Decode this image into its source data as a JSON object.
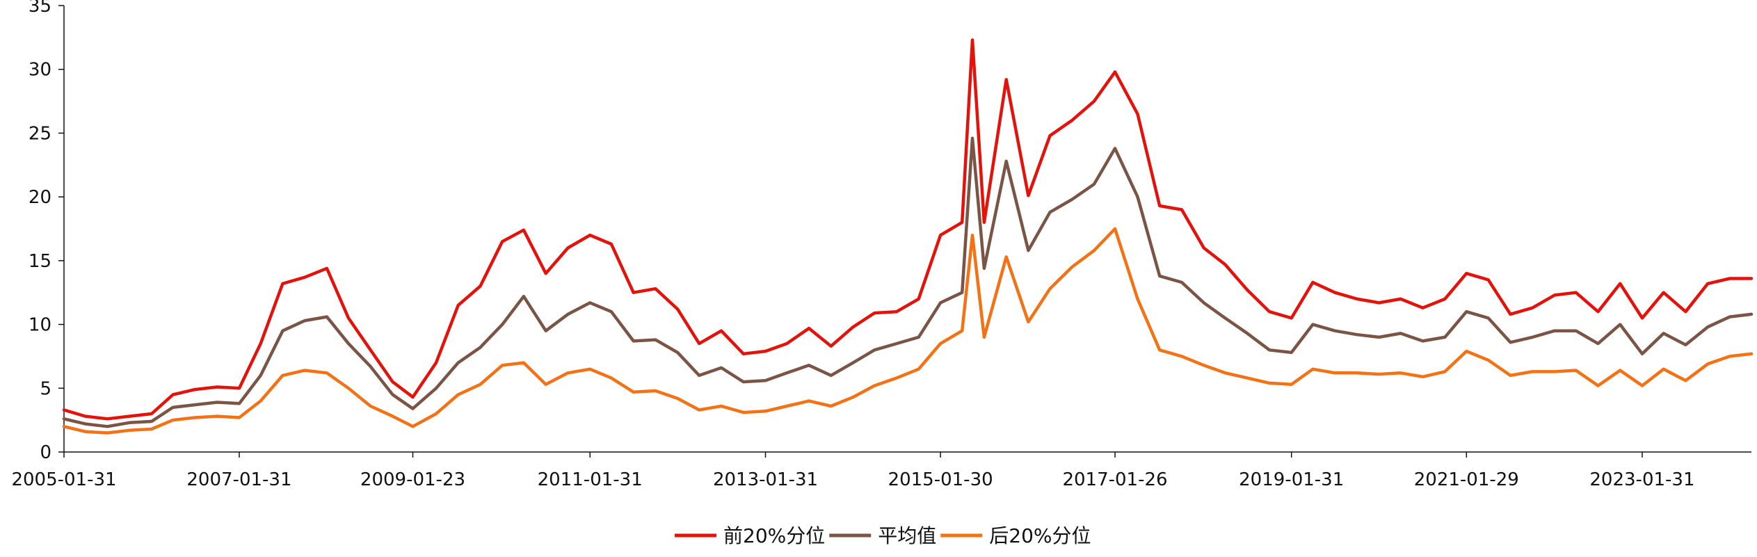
{
  "chart_data": {
    "type": "line",
    "title": "",
    "xlabel": "",
    "ylabel": "",
    "ylim": [
      0,
      35
    ],
    "y_ticks": [
      0,
      5,
      10,
      15,
      20,
      25,
      30,
      35
    ],
    "x_tick_labels": [
      "2005-01-31",
      "2007-01-31",
      "2009-01-23",
      "2011-01-31",
      "2013-01-31",
      "2015-01-30",
      "2017-01-26",
      "2019-01-31",
      "2021-01-29",
      "2023-01-31"
    ],
    "grid": false,
    "legend_position": "bottom-center",
    "x": [
      "2005-01-31",
      "2005-04-30",
      "2005-07-31",
      "2005-10-31",
      "2006-01-31",
      "2006-04-30",
      "2006-07-31",
      "2006-10-31",
      "2007-01-31",
      "2007-04-30",
      "2007-07-31",
      "2007-10-31",
      "2008-01-31",
      "2008-04-30",
      "2008-07-31",
      "2008-10-31",
      "2009-01-23",
      "2009-04-30",
      "2009-07-31",
      "2009-10-31",
      "2010-01-31",
      "2010-04-30",
      "2010-07-31",
      "2010-10-31",
      "2011-01-31",
      "2011-04-30",
      "2011-07-31",
      "2011-10-31",
      "2012-01-31",
      "2012-04-30",
      "2012-07-31",
      "2012-10-31",
      "2013-01-31",
      "2013-04-30",
      "2013-07-31",
      "2013-10-31",
      "2014-01-31",
      "2014-04-30",
      "2014-07-31",
      "2014-10-31",
      "2015-01-30",
      "2015-04-30",
      "2015-06-12",
      "2015-07-31",
      "2015-10-31",
      "2016-01-31",
      "2016-04-30",
      "2016-07-31",
      "2016-10-31",
      "2017-01-26",
      "2017-04-30",
      "2017-07-31",
      "2017-10-31",
      "2018-01-31",
      "2018-04-30",
      "2018-07-31",
      "2018-10-31",
      "2019-01-31",
      "2019-04-30",
      "2019-07-31",
      "2019-10-31",
      "2020-01-31",
      "2020-04-30",
      "2020-07-31",
      "2020-10-31",
      "2021-01-29",
      "2021-04-30",
      "2021-07-31",
      "2021-10-31",
      "2022-01-31",
      "2022-04-30",
      "2022-07-31",
      "2022-10-31",
      "2023-01-31",
      "2023-04-30",
      "2023-07-31",
      "2023-10-31",
      "2024-01-31",
      "2024-04-30"
    ],
    "series": [
      {
        "name": "前20%分位",
        "color": "#E3120B",
        "values": [
          3.3,
          2.8,
          2.6,
          2.8,
          3.0,
          4.5,
          4.9,
          5.1,
          5.0,
          8.5,
          13.2,
          13.7,
          14.4,
          10.5,
          8.0,
          5.5,
          4.3,
          7.0,
          11.5,
          13.0,
          16.5,
          17.4,
          14.0,
          16.0,
          17.0,
          16.3,
          12.5,
          12.8,
          11.2,
          8.5,
          9.5,
          7.7,
          7.9,
          8.5,
          9.7,
          8.3,
          9.8,
          10.9,
          11.0,
          12.0,
          17.0,
          18.0,
          32.3,
          18.0,
          29.2,
          20.1,
          24.8,
          26.0,
          27.5,
          29.8,
          26.5,
          19.3,
          19.0,
          16.0,
          14.7,
          12.7,
          11.0,
          10.5,
          13.3,
          12.5,
          12.0,
          11.7,
          12.0,
          11.3,
          12.0,
          14.0,
          13.5,
          10.8,
          11.3,
          12.3,
          12.5,
          11.0,
          13.2,
          10.5,
          12.5,
          11.0,
          13.2,
          13.6,
          13.6
        ]
      },
      {
        "name": "平均值",
        "color": "#7A5546",
        "values": [
          2.6,
          2.2,
          2.0,
          2.3,
          2.4,
          3.5,
          3.7,
          3.9,
          3.8,
          6.0,
          9.5,
          10.3,
          10.6,
          8.5,
          6.7,
          4.5,
          3.4,
          5.0,
          7.0,
          8.2,
          10.0,
          12.2,
          9.5,
          10.8,
          11.7,
          11.0,
          8.7,
          8.8,
          7.8,
          6.0,
          6.6,
          5.5,
          5.6,
          6.2,
          6.8,
          6.0,
          7.0,
          8.0,
          8.5,
          9.0,
          11.7,
          12.5,
          24.6,
          14.4,
          22.8,
          15.8,
          18.8,
          19.8,
          21.0,
          23.8,
          20.0,
          13.8,
          13.3,
          11.7,
          10.5,
          9.3,
          8.0,
          7.8,
          10.0,
          9.5,
          9.2,
          9.0,
          9.3,
          8.7,
          9.0,
          11.0,
          10.5,
          8.6,
          9.0,
          9.5,
          9.5,
          8.5,
          10.0,
          7.7,
          9.3,
          8.4,
          9.8,
          10.6,
          10.8
        ]
      },
      {
        "name": "后20%分位",
        "color": "#F47216",
        "values": [
          2.0,
          1.6,
          1.5,
          1.7,
          1.8,
          2.5,
          2.7,
          2.8,
          2.7,
          4.0,
          6.0,
          6.4,
          6.2,
          5.0,
          3.6,
          2.8,
          2.0,
          3.0,
          4.5,
          5.3,
          6.8,
          7.0,
          5.3,
          6.2,
          6.5,
          5.8,
          4.7,
          4.8,
          4.2,
          3.3,
          3.6,
          3.1,
          3.2,
          3.6,
          4.0,
          3.6,
          4.3,
          5.2,
          5.8,
          6.5,
          8.5,
          9.5,
          17.0,
          9.0,
          15.3,
          10.2,
          12.8,
          14.5,
          15.8,
          17.5,
          12.0,
          8.0,
          7.5,
          6.8,
          6.2,
          5.8,
          5.4,
          5.3,
          6.5,
          6.2,
          6.2,
          6.1,
          6.2,
          5.9,
          6.3,
          7.9,
          7.2,
          6.0,
          6.3,
          6.3,
          6.4,
          5.2,
          6.4,
          5.2,
          6.5,
          5.6,
          6.9,
          7.5,
          7.7
        ]
      }
    ]
  }
}
